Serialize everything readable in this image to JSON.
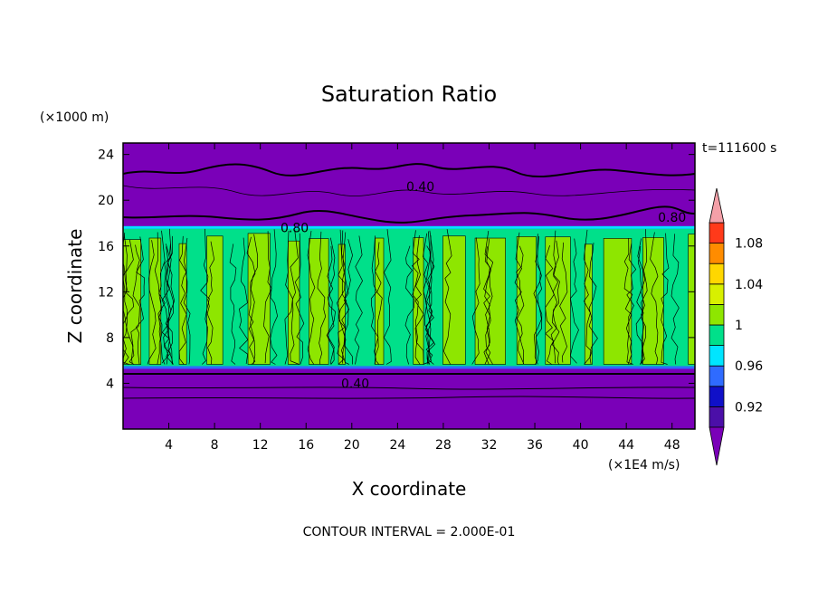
{
  "chart_data": {
    "type": "heatmap",
    "title": "Saturation Ratio",
    "xlabel": "X coordinate",
    "ylabel": "Z coordinate",
    "x_unit": "(×1E4 m/s)",
    "y_unit": "(×1000 m)",
    "time_label": "t=111600 s",
    "footer": "CONTOUR INTERVAL = 2.000E-01",
    "xlim": [
      0,
      50
    ],
    "ylim": [
      0,
      25
    ],
    "x_ticks": [
      "4",
      "8",
      "12",
      "16",
      "20",
      "24",
      "28",
      "32",
      "36",
      "40",
      "44",
      "48"
    ],
    "x_tick_values": [
      4,
      8,
      12,
      16,
      20,
      24,
      28,
      32,
      36,
      40,
      44,
      48
    ],
    "y_ticks": [
      "4",
      "8",
      "12",
      "16",
      "20",
      "24"
    ],
    "y_tick_values": [
      4,
      8,
      12,
      16,
      20,
      24
    ],
    "contour_labels": [
      {
        "text": "0.40",
        "x": 26,
        "z": 21.2
      },
      {
        "text": "0.80",
        "x": 15,
        "z": 17.6
      },
      {
        "text": "0.80",
        "x": 48,
        "z": 18.5
      },
      {
        "text": "0.40",
        "x": 20.3,
        "z": 4.0
      }
    ],
    "colorbar": {
      "levels": [
        0.9,
        0.92,
        0.94,
        0.96,
        0.98,
        1.0,
        1.02,
        1.04,
        1.06,
        1.08,
        1.1
      ],
      "labels": [
        "0.92",
        "0.96",
        "1",
        "1.04",
        "1.08"
      ],
      "label_values": [
        0.92,
        0.96,
        1.0,
        1.04,
        1.08
      ],
      "colors": [
        "#4b0fa8",
        "#1010c8",
        "#2f6bff",
        "#00e5ff",
        "#00e08a",
        "#8ee600",
        "#d8f000",
        "#ffd700",
        "#ff8c00",
        "#ff3a1a"
      ],
      "under_color": "#7a00b8",
      "over_color": "#f4a0a8"
    },
    "regions": {
      "saturated_band_z": [
        5.5,
        17.5
      ],
      "colors": {
        "dry": "#7a00b8",
        "near_sat": "#00e08a",
        "super_sat": "#8ee600"
      }
    }
  }
}
